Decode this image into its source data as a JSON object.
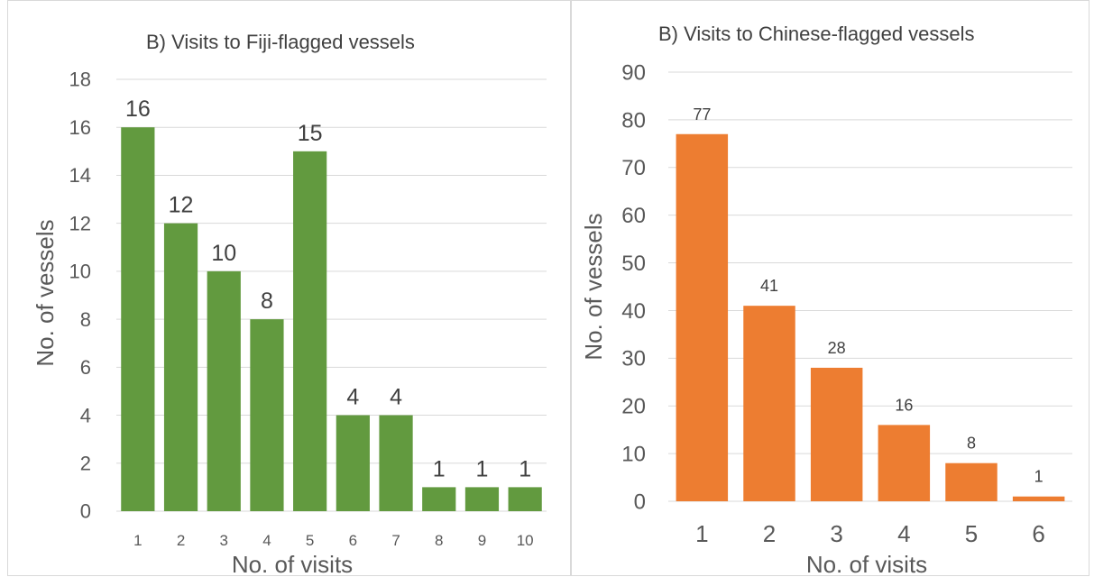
{
  "chart_data": [
    {
      "type": "bar",
      "title": "B) Visits to Fiji-flagged vessels",
      "xlabel": "No. of visits",
      "ylabel": "No. of vessels",
      "categories": [
        "1",
        "2",
        "3",
        "4",
        "5",
        "6",
        "7",
        "8",
        "9",
        "10"
      ],
      "values": [
        16,
        12,
        10,
        8,
        15,
        4,
        4,
        1,
        1,
        1
      ],
      "ylim": [
        0,
        18
      ],
      "yticks": [
        "0",
        "2",
        "4",
        "6",
        "8",
        "10",
        "12",
        "14",
        "16",
        "18"
      ],
      "color": "#629a3f",
      "grid": true,
      "data_labels": true
    },
    {
      "type": "bar",
      "title": "B) Visits to Chinese-flagged vessels",
      "xlabel": "No. of visits",
      "ylabel": "No. of vessels",
      "categories": [
        "1",
        "2",
        "3",
        "4",
        "5",
        "6"
      ],
      "values": [
        77,
        41,
        28,
        16,
        8,
        1
      ],
      "ylim": [
        0,
        90
      ],
      "yticks": [
        "0",
        "10",
        "20",
        "30",
        "40",
        "50",
        "60",
        "70",
        "80",
        "90"
      ],
      "color": "#ed7d31",
      "grid": true,
      "data_labels": true
    }
  ]
}
